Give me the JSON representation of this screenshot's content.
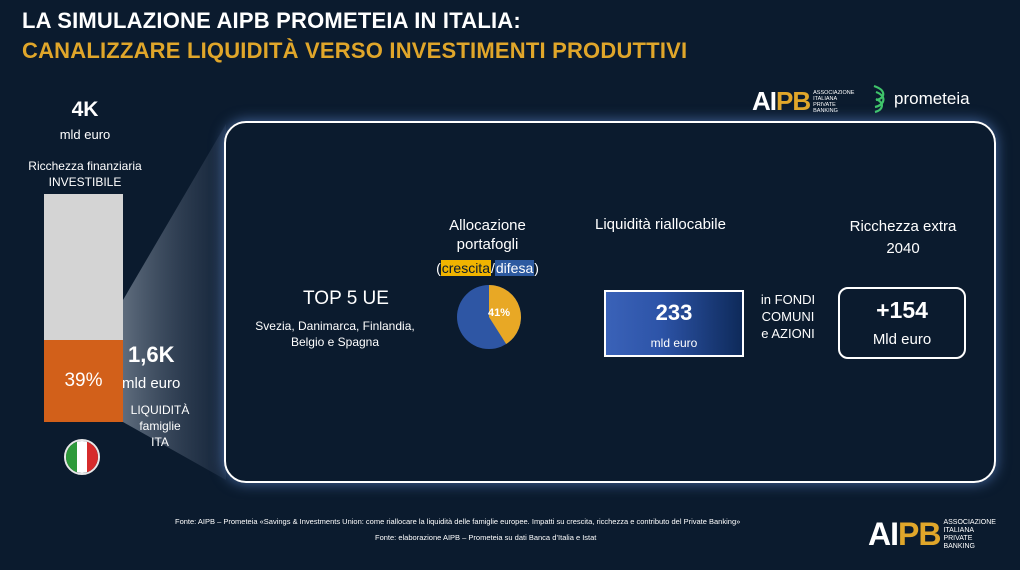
{
  "title": {
    "line1": "LA SIMULAZIONE AIPB PROMETEIA IN ITALIA:",
    "line2": "CANALIZZARE LIQUIDITÀ VERSO INVESTIMENTI PRODUTTIVI"
  },
  "logos": {
    "aipb_mark_a": "AI",
    "aipb_mark_b": "PB",
    "aipb_assoc": [
      "ASSOCIAZIONE",
      "ITALIANA",
      "PRIVATE",
      "BANKING"
    ],
    "prometeia": "prometeia"
  },
  "left_column": {
    "total_value": "4K",
    "total_unit": "mld euro",
    "total_label_1": "Ricchezza finanziaria",
    "total_label_2": "INVESTIBILE",
    "liquidity_pct": "39%",
    "liquidity_share": 0.39,
    "liquidity_value": "1,6K",
    "liquidity_unit": "mld euro",
    "liquidity_label": [
      "LIQUIDITÀ",
      "famiglie",
      "ITA"
    ],
    "flag_colors": [
      "#2e9a3a",
      "#ffffff",
      "#d62b2b"
    ]
  },
  "panel": {
    "top5_title": "TOP 5 UE",
    "top5_countries": [
      "Svezia, Danimarca, Finlandia,",
      "Belgio e Spagna"
    ],
    "allocation_title": [
      "Allocazione",
      "portafogli"
    ],
    "allocation_open": "(",
    "allocation_growth": "crescita",
    "allocation_sep": "/",
    "allocation_defense": "difesa",
    "allocation_close": ")",
    "pie_label": "41%",
    "pie_share": 0.41,
    "pie_colors": {
      "growth": "#e8a825",
      "defense": "#2e56a4"
    },
    "liquidity_title": "Liquidità riallocabile",
    "liquidity_value": "233",
    "liquidity_unit": "mld euro",
    "liquidity_target": [
      "in FONDI",
      "COMUNI",
      "e AZIONI"
    ],
    "wealth_title": [
      "Ricchezza extra",
      "2040"
    ],
    "wealth_value": "+154",
    "wealth_unit": "Mld euro"
  },
  "footer": {
    "source_1": "Fonte: AIPB – Prometeia «Savings & Investments Union: come riallocare la liquidità delle famiglie europee. Impatti su crescita, ricchezza e contributo del Private Banking»",
    "source_2": "Fonte:  elaborazione AIPB – Prometeia su dati Banca d’Italia e Istat"
  }
}
